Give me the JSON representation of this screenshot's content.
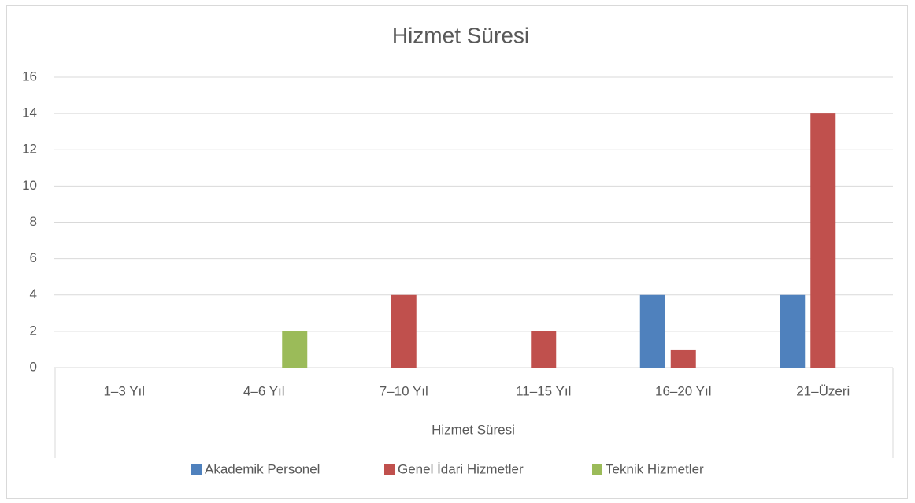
{
  "chart_data": {
    "type": "bar",
    "title": "Hizmet Süresi",
    "x_label": "Hizmet Süresi",
    "categories": [
      "1–3 Yıl",
      "4–6 Yıl",
      "7–10 Yıl",
      "11–15 Yıl",
      "16–20 Yıl",
      "21–Üzeri"
    ],
    "series": [
      {
        "name": "Akademik Personel",
        "color": "#4f81bd",
        "values": [
          0,
          0,
          0,
          0,
          4,
          4
        ]
      },
      {
        "name": "Genel İdari Hizmetler",
        "color": "#c0504d",
        "values": [
          0,
          0,
          4,
          2,
          1,
          14
        ]
      },
      {
        "name": "Teknik Hizmetler",
        "color": "#9bbb59",
        "values": [
          0,
          2,
          0,
          0,
          0,
          0
        ]
      }
    ],
    "ylim": [
      0,
      16
    ],
    "yticks": [
      0,
      2,
      4,
      6,
      8,
      10,
      12,
      14,
      16
    ],
    "grid": true,
    "legend": "bottom"
  }
}
